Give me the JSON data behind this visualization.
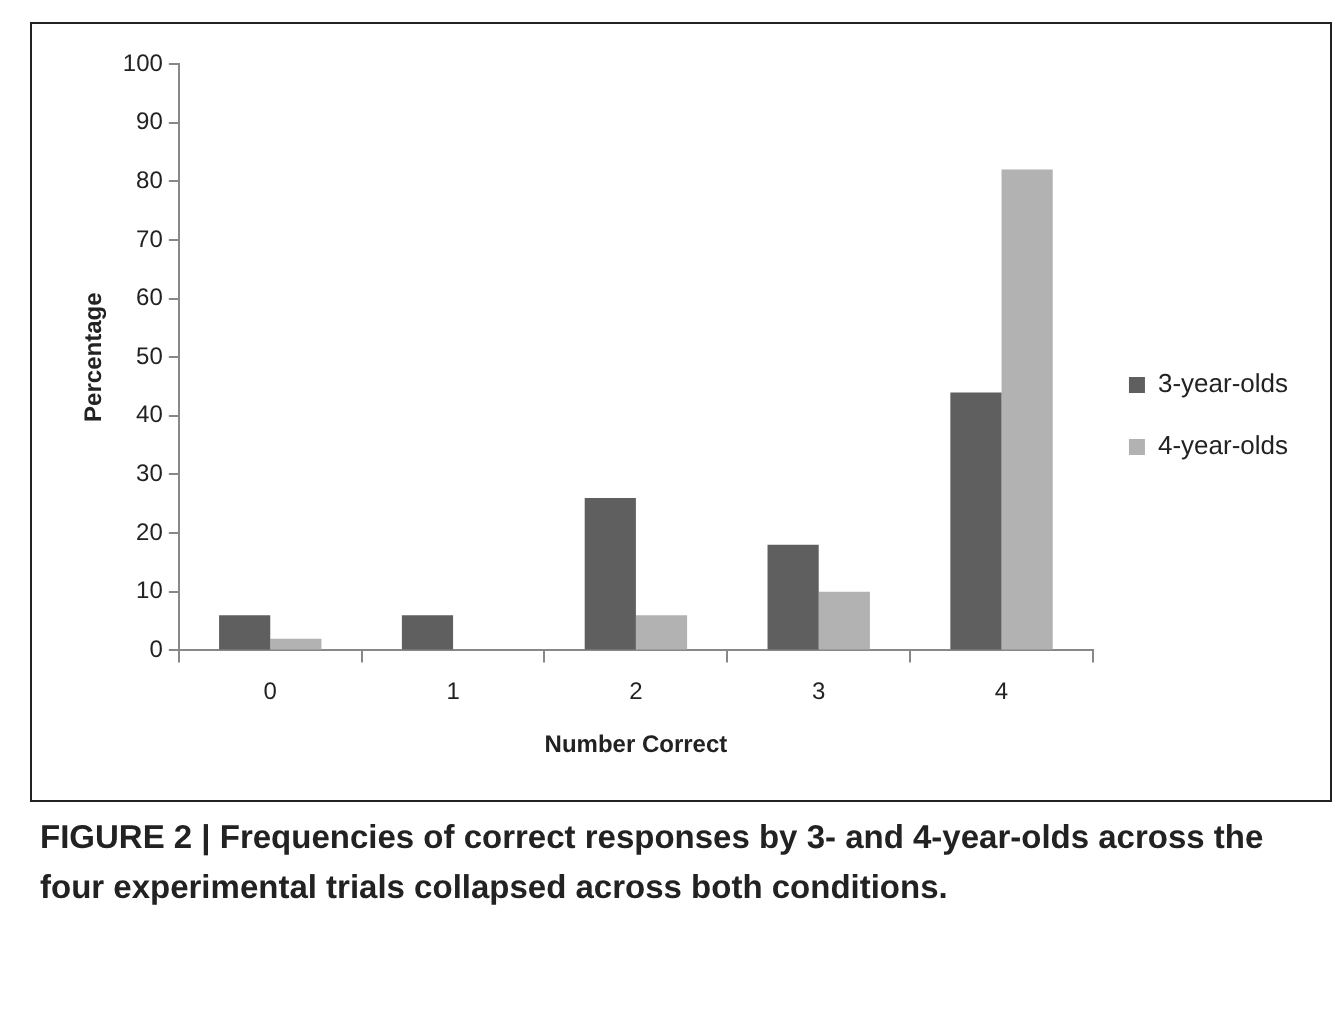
{
  "chart_data": {
    "type": "bar",
    "xlabel": "Number Correct",
    "ylabel": "Percentage",
    "categories": [
      "0",
      "1",
      "2",
      "3",
      "4"
    ],
    "series": [
      {
        "name": "3-year-olds",
        "color": "#5f5f5f",
        "values": [
          6,
          6,
          26,
          18,
          44
        ]
      },
      {
        "name": "4-year-olds",
        "color": "#b2b2b2",
        "values": [
          2,
          0,
          6,
          10,
          82
        ]
      }
    ],
    "ylim": [
      0,
      100
    ],
    "yticks": [
      0,
      10,
      20,
      30,
      40,
      50,
      60,
      70,
      80,
      90,
      100
    ],
    "grid": false,
    "legend": "right",
    "annotations": [
      "FIGURE 2 | Frequencies of correct responses by 3- and 4-year-olds across the four experimental trials collapsed across both conditions."
    ]
  }
}
